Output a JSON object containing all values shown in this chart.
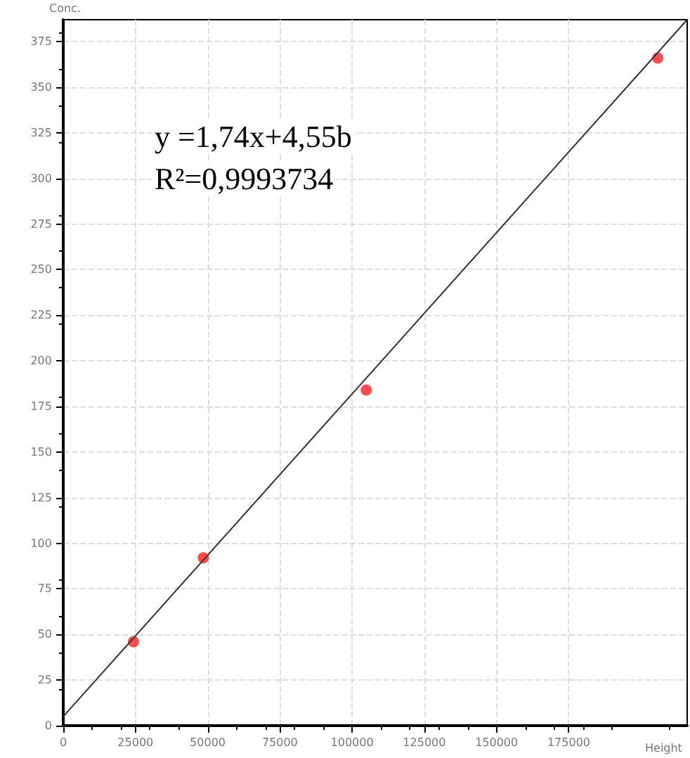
{
  "chart_data": {
    "type": "scatter",
    "xlabel": "Height",
    "ylabel": "Conc.",
    "annotations": [
      "y =1,74x+4,55b",
      "R²=0,9993734"
    ],
    "series": [
      {
        "color": "#ff2020",
        "x": [
          24300,
          48500,
          104900,
          205800
        ],
        "values": [
          46,
          92,
          184,
          366
        ],
        "marker": "circle"
      },
      {
        "type": "line",
        "color": "#333333",
        "x": [
          0,
          216000
        ],
        "values": [
          5,
          387
        ],
        "marker": "none"
      }
    ],
    "xlim": [
      0,
      216000
    ],
    "xticks": [
      0,
      25000,
      50000,
      75000,
      100000,
      125000,
      150000,
      175000
    ],
    "ylim": [
      0,
      387
    ],
    "yticks": [
      0,
      25,
      50,
      75,
      100,
      125,
      150,
      175,
      200,
      225,
      250,
      275,
      300,
      325,
      350,
      375
    ],
    "grid": true
  }
}
